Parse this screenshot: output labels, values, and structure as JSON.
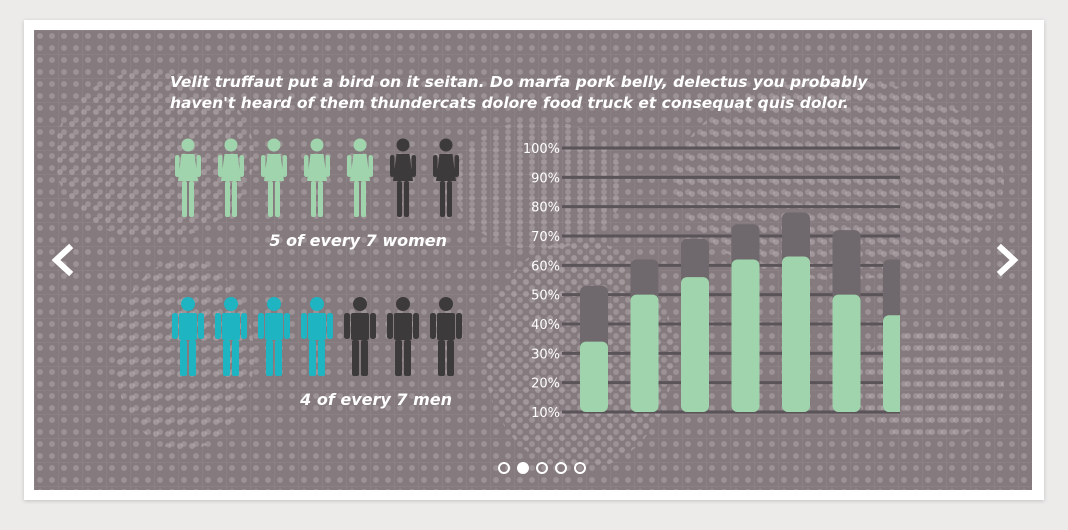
{
  "slide": {
    "headline": "Velit truffaut put a bird on it seitan. Do marfa pork belly, delectus you probably haven't heard of them thundercats dolore food truck et consequat quis dolor.",
    "women": {
      "highlighted": 5,
      "total": 7,
      "caption": "5 of every 7 women",
      "color": "#a0d4ac",
      "muted": "#3d3a3c"
    },
    "men": {
      "highlighted": 4,
      "total": 7,
      "caption": "4 of every 7 men",
      "color": "#1fb4c1",
      "muted": "#3d3a3c"
    }
  },
  "chart_data": {
    "type": "bar",
    "y_ticks": [
      "100%",
      "90%",
      "80%",
      "70%",
      "60%",
      "50%",
      "40%",
      "30%",
      "20%",
      "10%"
    ],
    "ylim": [
      10,
      100
    ],
    "grid": true,
    "series": [
      {
        "values": [
          34,
          50,
          56,
          62,
          63,
          50,
          43
        ],
        "color": "#a0d4ac"
      },
      {
        "values": [
          53,
          62,
          69,
          74,
          78,
          72,
          62
        ],
        "color": "#6f686d"
      }
    ]
  },
  "carousel": {
    "slides": 5,
    "active": 1,
    "prev_icon": "chevron-left-icon",
    "next_icon": "chevron-right-icon"
  }
}
